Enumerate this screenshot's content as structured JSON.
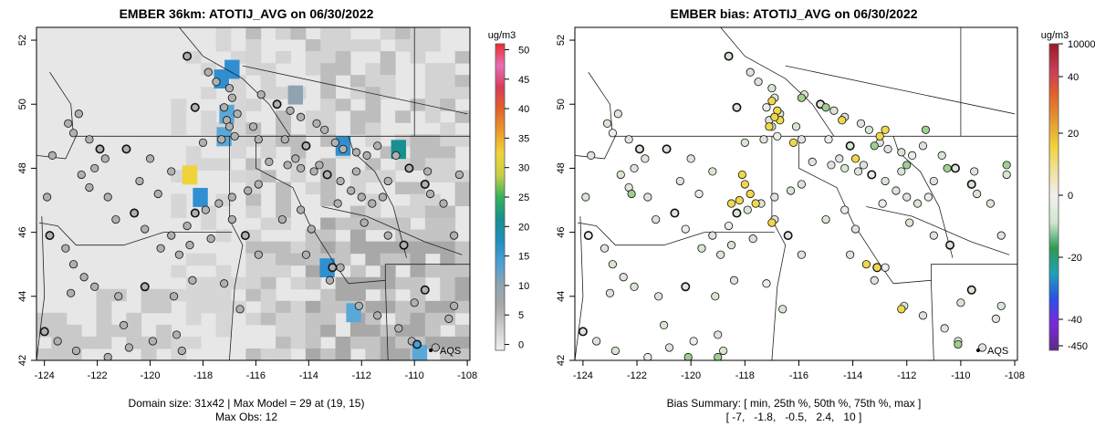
{
  "colors": {
    "left_scale": [
      "#f0f0f0",
      "#cfcfcf",
      "#a9a9a9",
      "#8fa3b1",
      "#4aa0d8",
      "#1f8fbe",
      "#169090",
      "#35b35e",
      "#c8cf45",
      "#f0d23a",
      "#ec9b2a",
      "#e3622c",
      "#d93b57",
      "#e66fb6",
      "#f02b2b"
    ],
    "right_scale": [
      "#5b2a86",
      "#7f26d9",
      "#2a4fe8",
      "#1fa0b8",
      "#2f9a52",
      "#cfe6cf",
      "#f0f0f0",
      "#f0e2a0",
      "#f0d23a",
      "#e39a30",
      "#e3622c",
      "#c83a5a",
      "#9a1c22"
    ],
    "points": "#b0b0b0",
    "points_right": "#cfd8cf",
    "grid_bg": "#e7e7e7"
  },
  "chart_data": [
    {
      "type": "heatmap",
      "title": "EMBER 36km: ATOTIJ_AVG on 06/30/2022",
      "xlabel": "Domain size: 31x42 | Max Model = 29 at (19, 15)",
      "subtitle": "Max Obs: 12",
      "x_ticks": [
        -124,
        -122,
        -120,
        -118,
        -116,
        -114,
        -112,
        -110,
        -108
      ],
      "y_ticks": [
        42,
        44,
        46,
        48,
        50,
        52
      ],
      "x_tick_labels": [
        "-124",
        "-122",
        "-120",
        "-118",
        "-116",
        "-114",
        "-112",
        "-110",
        "-108"
      ],
      "y_tick_labels": [
        "42",
        "44",
        "46",
        "48",
        "50",
        "52"
      ],
      "xlim": [
        -124.3,
        -107.9
      ],
      "ylim": [
        42.0,
        52.4
      ],
      "colorbar_unit": "ug/m3",
      "colorbar_ticks": [
        0,
        5,
        10,
        15,
        20,
        25,
        30,
        35,
        40,
        45,
        50
      ],
      "colorbar_tick_labels": [
        "0",
        "5",
        "10",
        "15",
        "20",
        "25",
        "30",
        "35",
        "40",
        "45",
        "50"
      ],
      "colorbar_range": [
        -1,
        51
      ],
      "legend": "AQS",
      "legend_position": "bottom-right",
      "hot_cells": [
        {
          "lon": -116.9,
          "lat": 51.2,
          "value": 12
        },
        {
          "lon": -117.3,
          "lat": 50.9,
          "value": 14
        },
        {
          "lon": -117.1,
          "lat": 49.8,
          "value": 10
        },
        {
          "lon": -117.2,
          "lat": 49.1,
          "value": 9
        },
        {
          "lon": -118.5,
          "lat": 47.9,
          "value": 29
        },
        {
          "lon": -118.1,
          "lat": 47.2,
          "value": 13
        },
        {
          "lon": -112.7,
          "lat": 48.8,
          "value": 12
        },
        {
          "lon": -110.6,
          "lat": 48.7,
          "value": 17
        },
        {
          "lon": -113.3,
          "lat": 45.0,
          "value": 11
        },
        {
          "lon": -112.3,
          "lat": 43.6,
          "value": 9
        },
        {
          "lon": -114.5,
          "lat": 50.4,
          "value": 6
        },
        {
          "lon": -109.8,
          "lat": 42.3,
          "value": 9
        }
      ],
      "sites": [
        [
          -118.6,
          51.5
        ],
        [
          -117.8,
          51.0
        ],
        [
          -117.5,
          50.7
        ],
        [
          -117.0,
          50.5
        ],
        [
          -116.9,
          50.2
        ],
        [
          -117.2,
          49.9
        ],
        [
          -116.7,
          49.7
        ],
        [
          -118.3,
          49.9
        ],
        [
          -117.1,
          49.5
        ],
        [
          -117.0,
          49.3
        ],
        [
          -116.8,
          49.0
        ],
        [
          -117.3,
          48.9
        ],
        [
          -118.0,
          48.8
        ],
        [
          -115.8,
          50.3
        ],
        [
          -115.2,
          50.0
        ],
        [
          -114.7,
          49.8
        ],
        [
          -114.3,
          49.6
        ],
        [
          -113.7,
          49.4
        ],
        [
          -113.4,
          49.2
        ],
        [
          -115.9,
          48.9
        ],
        [
          -114.9,
          48.9
        ],
        [
          -114.1,
          48.7
        ],
        [
          -113.0,
          48.8
        ],
        [
          -112.7,
          48.6
        ],
        [
          -112.2,
          48.5
        ],
        [
          -111.8,
          48.4
        ],
        [
          -111.4,
          48.7
        ],
        [
          -110.7,
          48.4
        ],
        [
          -110.2,
          48.0
        ],
        [
          -109.5,
          47.9
        ],
        [
          -108.3,
          47.8
        ],
        [
          -115.5,
          48.2
        ],
        [
          -114.8,
          48.1
        ],
        [
          -114.3,
          48.0
        ],
        [
          -113.8,
          47.9
        ],
        [
          -113.3,
          47.8
        ],
        [
          -112.8,
          47.6
        ],
        [
          -112.4,
          47.3
        ],
        [
          -112.0,
          47.1
        ],
        [
          -111.6,
          46.9
        ],
        [
          -111.2,
          47.1
        ],
        [
          -109.4,
          47.2
        ],
        [
          -109.6,
          47.5
        ],
        [
          -108.9,
          46.9
        ],
        [
          -115.9,
          47.5
        ],
        [
          -116.3,
          47.3
        ],
        [
          -116.9,
          47.1
        ],
        [
          -117.4,
          46.9
        ],
        [
          -117.9,
          46.7
        ],
        [
          -118.3,
          46.6
        ],
        [
          -118.6,
          46.2
        ],
        [
          -118.5,
          45.6
        ],
        [
          -118.9,
          45.3
        ],
        [
          -119.2,
          45.9
        ],
        [
          -119.6,
          45.5
        ],
        [
          -120.2,
          46.1
        ],
        [
          -120.6,
          46.6
        ],
        [
          -121.3,
          46.4
        ],
        [
          -121.6,
          47.1
        ],
        [
          -122.3,
          47.4
        ],
        [
          -122.6,
          47.8
        ],
        [
          -122.1,
          48.0
        ],
        [
          -121.7,
          48.3
        ],
        [
          -121.9,
          48.6
        ],
        [
          -122.3,
          48.9
        ],
        [
          -122.9,
          49.1
        ],
        [
          -123.1,
          49.4
        ],
        [
          -122.7,
          49.7
        ],
        [
          -123.7,
          48.4
        ],
        [
          -123.9,
          47.1
        ],
        [
          -123.8,
          45.9
        ],
        [
          -123.2,
          45.5
        ],
        [
          -122.9,
          45.0
        ],
        [
          -122.5,
          44.6
        ],
        [
          -123.0,
          44.1
        ],
        [
          -122.1,
          44.3
        ],
        [
          -121.2,
          44.0
        ],
        [
          -120.2,
          44.3
        ],
        [
          -119.1,
          44.0
        ],
        [
          -118.4,
          44.5
        ],
        [
          -117.2,
          44.4
        ],
        [
          -116.6,
          43.6
        ],
        [
          -115.9,
          45.3
        ],
        [
          -114.1,
          45.3
        ],
        [
          -113.1,
          44.9
        ],
        [
          -112.8,
          44.9
        ],
        [
          -113.2,
          44.5
        ],
        [
          -112.1,
          43.7
        ],
        [
          -111.4,
          43.4
        ],
        [
          -110.6,
          43.0
        ],
        [
          -110.0,
          43.8
        ],
        [
          -109.6,
          44.2
        ],
        [
          -108.7,
          43.3
        ],
        [
          -108.5,
          43.7
        ],
        [
          -120.8,
          42.4
        ],
        [
          -121.6,
          42.1
        ],
        [
          -122.8,
          42.3
        ],
        [
          -123.5,
          42.6
        ],
        [
          -124.0,
          42.9
        ],
        [
          -121.0,
          43.1
        ],
        [
          -119.9,
          42.6
        ],
        [
          -119.0,
          42.8
        ],
        [
          -118.8,
          42.3
        ],
        [
          -110.1,
          42.6
        ],
        [
          -109.2,
          42.4
        ],
        [
          -110.4,
          45.6
        ],
        [
          -111.0,
          45.9
        ],
        [
          -108.5,
          45.9
        ],
        [
          -111.9,
          46.3
        ],
        [
          -113.9,
          46.1
        ],
        [
          -114.3,
          46.7
        ],
        [
          -115.0,
          46.4
        ],
        [
          -116.4,
          45.9
        ],
        [
          -116.9,
          46.4
        ],
        [
          -117.7,
          45.8
        ],
        [
          -119.7,
          47.2
        ],
        [
          -120.4,
          47.6
        ],
        [
          -119.2,
          47.9
        ],
        [
          -120.0,
          48.3
        ],
        [
          -120.9,
          48.6
        ],
        [
          -116.1,
          49.3
        ],
        [
          -114.5,
          48.3
        ],
        [
          -113.6,
          48.1
        ],
        [
          -112.2,
          47.9
        ],
        [
          -111.0,
          47.6
        ],
        [
          -112.9,
          46.9
        ]
      ],
      "aqs_site": [
        -109.2,
        42.3
      ]
    },
    {
      "type": "scatter",
      "title": "EMBER bias: ATOTIJ_AVG on 06/30/2022",
      "xlabel": "Bias Summary: [ min, 25th %, 50th %, 75th %, max ]",
      "subtitle": "[ -7,   -1.8,   -0.5,   2.4,   10 ]",
      "x_ticks": [
        -124,
        -122,
        -120,
        -118,
        -116,
        -114,
        -112,
        -110,
        -108
      ],
      "y_ticks": [
        42,
        44,
        46,
        48,
        50,
        52
      ],
      "x_tick_labels": [
        "-124",
        "-122",
        "-120",
        "-118",
        "-116",
        "-114",
        "-112",
        "-110",
        "-108"
      ],
      "y_tick_labels": [
        "42",
        "44",
        "46",
        "48",
        "50",
        "52"
      ],
      "xlim": [
        -124.3,
        -107.9
      ],
      "ylim": [
        42.0,
        52.4
      ],
      "colorbar_unit": "ug/m3",
      "colorbar_tick_labels": [
        "10000",
        "40",
        "20",
        "0",
        "-20",
        "-40",
        "-450"
      ],
      "legend": "AQS",
      "legend_position": "bottom-right",
      "bias_summary": {
        "min": -7,
        "p25": -1.8,
        "p50": -0.5,
        "p75": 2.4,
        "max": 10
      },
      "yellow_sites": [
        [
          -117.0,
          50.1
        ],
        [
          -116.8,
          49.8
        ],
        [
          -116.7,
          49.5
        ],
        [
          -117.1,
          49.3
        ],
        [
          -116.9,
          49.6
        ],
        [
          -118.1,
          47.8
        ],
        [
          -118.0,
          47.5
        ],
        [
          -117.8,
          47.2
        ],
        [
          -118.2,
          47.0
        ],
        [
          -118.5,
          46.9
        ],
        [
          -117.6,
          46.9
        ],
        [
          -117.0,
          46.3
        ],
        [
          -116.2,
          48.8
        ],
        [
          -113.0,
          49.0
        ],
        [
          -112.8,
          49.2
        ],
        [
          -113.5,
          45.0
        ],
        [
          -113.1,
          44.9
        ],
        [
          -112.2,
          43.6
        ],
        [
          -114.4,
          49.5
        ],
        [
          -113.9,
          48.3
        ]
      ],
      "green_sites": [
        [
          -110.1,
          42.5
        ],
        [
          -113.2,
          48.7
        ],
        [
          -112.0,
          48.1
        ],
        [
          -110.5,
          48.0
        ],
        [
          -108.3,
          48.1
        ],
        [
          -120.1,
          42.1
        ],
        [
          -119.0,
          42.1
        ],
        [
          -122.2,
          47.2
        ],
        [
          -115.9,
          50.2
        ],
        [
          -115.0,
          49.9
        ],
        [
          -111.3,
          49.2
        ]
      ],
      "aqs_site": [
        -109.2,
        42.3
      ]
    }
  ]
}
